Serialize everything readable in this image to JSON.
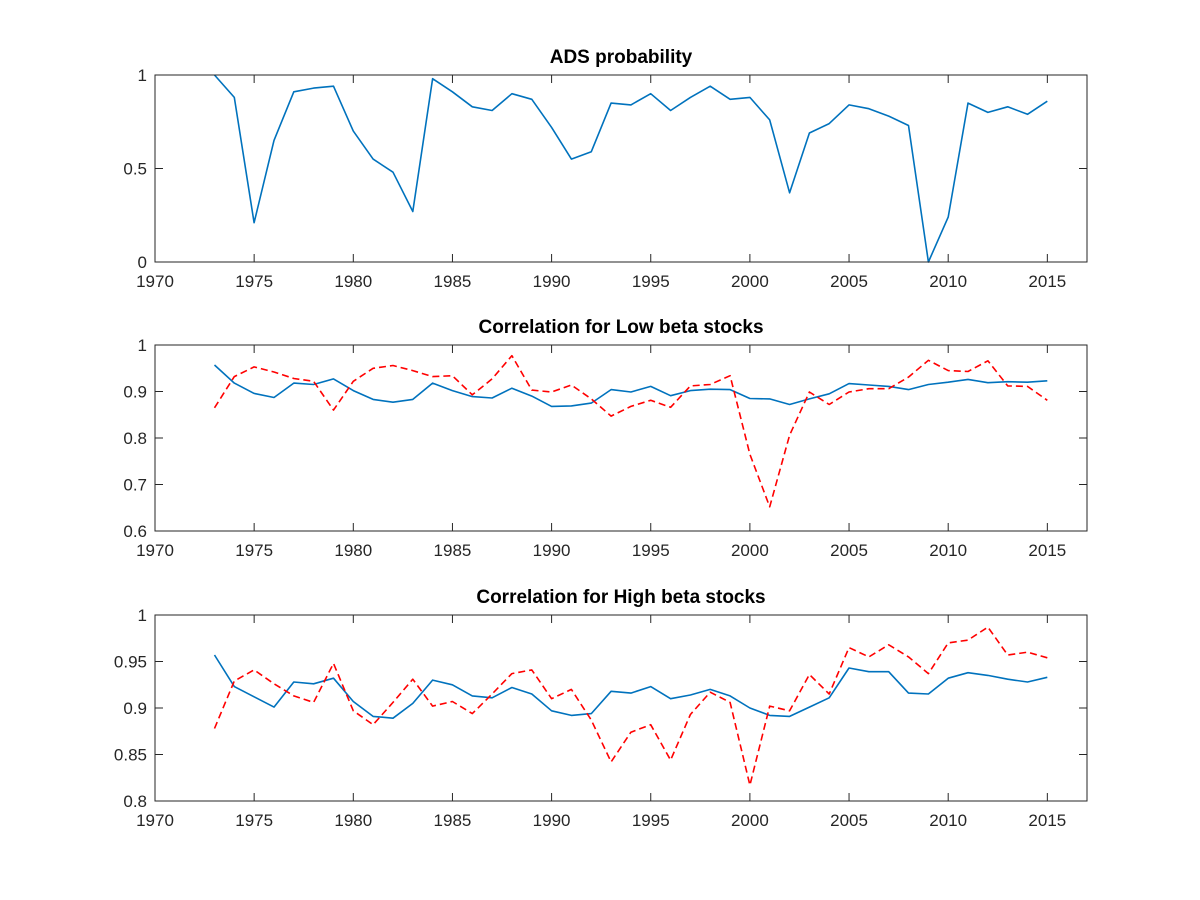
{
  "chart_data": [
    {
      "type": "line",
      "title": "ADS probability",
      "xlabel": "",
      "ylabel": "",
      "xlim": [
        1970,
        2017
      ],
      "ylim": [
        0,
        1
      ],
      "xticks": [
        1970,
        1975,
        1980,
        1985,
        1990,
        1995,
        2000,
        2005,
        2010,
        2015
      ],
      "xtick_labels": [
        "1970",
        "1975",
        "1980",
        "1985",
        "1990",
        "1995",
        "2000",
        "2005",
        "2010",
        "2015"
      ],
      "yticks": [
        0,
        0.5,
        1
      ],
      "ytick_labels": [
        "0",
        "0.5",
        "1"
      ],
      "grid": false,
      "x": [
        1973,
        1974,
        1975,
        1976,
        1977,
        1978,
        1979,
        1980,
        1981,
        1982,
        1983,
        1984,
        1985,
        1986,
        1987,
        1988,
        1989,
        1990,
        1991,
        1992,
        1993,
        1994,
        1995,
        1996,
        1997,
        1998,
        1999,
        2000,
        2001,
        2002,
        2003,
        2004,
        2005,
        2006,
        2007,
        2008,
        2009,
        2010,
        2011,
        2012,
        2013,
        2014,
        2015
      ],
      "series": [
        {
          "color": "#0072BD",
          "style": "solid",
          "values": [
            1.0,
            0.88,
            0.21,
            0.65,
            0.91,
            0.93,
            0.94,
            0.7,
            0.55,
            0.48,
            0.27,
            0.98,
            0.91,
            0.83,
            0.81,
            0.9,
            0.87,
            0.72,
            0.55,
            0.59,
            0.85,
            0.84,
            0.9,
            0.81,
            0.88,
            0.94,
            0.87,
            0.88,
            0.76,
            0.37,
            0.69,
            0.74,
            0.84,
            0.82,
            0.78,
            0.73,
            0.0,
            0.24,
            0.85,
            0.8,
            0.83,
            0.79,
            0.86
          ]
        }
      ]
    },
    {
      "type": "line",
      "title": "Correlation for Low beta stocks",
      "xlabel": "",
      "ylabel": "",
      "xlim": [
        1970,
        2017
      ],
      "ylim": [
        0.6,
        1
      ],
      "xticks": [
        1970,
        1975,
        1980,
        1985,
        1990,
        1995,
        2000,
        2005,
        2010,
        2015
      ],
      "xtick_labels": [
        "1970",
        "1975",
        "1980",
        "1985",
        "1990",
        "1995",
        "2000",
        "2005",
        "2010",
        "2015"
      ],
      "yticks": [
        0.6,
        0.7,
        0.8,
        0.9,
        1
      ],
      "ytick_labels": [
        "0.6",
        "0.7",
        "0.8",
        "0.9",
        "1"
      ],
      "grid": false,
      "x": [
        1973,
        1974,
        1975,
        1976,
        1977,
        1978,
        1979,
        1980,
        1981,
        1982,
        1983,
        1984,
        1985,
        1986,
        1987,
        1988,
        1989,
        1990,
        1991,
        1992,
        1993,
        1994,
        1995,
        1996,
        1997,
        1998,
        1999,
        2000,
        2001,
        2002,
        2003,
        2004,
        2005,
        2006,
        2007,
        2008,
        2009,
        2010,
        2011,
        2012,
        2013,
        2014,
        2015
      ],
      "series": [
        {
          "color": "#0072BD",
          "style": "solid",
          "values": [
            0.957,
            0.918,
            0.896,
            0.887,
            0.918,
            0.915,
            0.927,
            0.902,
            0.883,
            0.877,
            0.883,
            0.918,
            0.902,
            0.889,
            0.886,
            0.907,
            0.89,
            0.868,
            0.869,
            0.875,
            0.904,
            0.899,
            0.911,
            0.891,
            0.902,
            0.905,
            0.904,
            0.885,
            0.884,
            0.872,
            0.884,
            0.895,
            0.917,
            0.914,
            0.911,
            0.904,
            0.915,
            0.92,
            0.926,
            0.919,
            0.921,
            0.92,
            0.923
          ]
        },
        {
          "color": "#FF0000",
          "style": "dashed",
          "values": [
            0.865,
            0.932,
            0.953,
            0.942,
            0.928,
            0.922,
            0.86,
            0.922,
            0.95,
            0.956,
            0.945,
            0.932,
            0.934,
            0.893,
            0.927,
            0.977,
            0.903,
            0.899,
            0.914,
            0.884,
            0.847,
            0.868,
            0.881,
            0.866,
            0.912,
            0.915,
            0.934,
            0.765,
            0.652,
            0.806,
            0.899,
            0.872,
            0.899,
            0.906,
            0.906,
            0.931,
            0.967,
            0.945,
            0.943,
            0.966,
            0.912,
            0.911,
            0.881
          ]
        }
      ]
    },
    {
      "type": "line",
      "title": "Correlation for High beta stocks",
      "xlabel": "",
      "ylabel": "",
      "xlim": [
        1970,
        2017
      ],
      "ylim": [
        0.8,
        1
      ],
      "xticks": [
        1970,
        1975,
        1980,
        1985,
        1990,
        1995,
        2000,
        2005,
        2010,
        2015
      ],
      "xtick_labels": [
        "1970",
        "1975",
        "1980",
        "1985",
        "1990",
        "1995",
        "2000",
        "2005",
        "2010",
        "2015"
      ],
      "yticks": [
        0.8,
        0.85,
        0.9,
        0.95,
        1
      ],
      "ytick_labels": [
        "0.8",
        "0.85",
        "0.9",
        "0.95",
        "1"
      ],
      "grid": false,
      "x": [
        1973,
        1974,
        1975,
        1976,
        1977,
        1978,
        1979,
        1980,
        1981,
        1982,
        1983,
        1984,
        1985,
        1986,
        1987,
        1988,
        1989,
        1990,
        1991,
        1992,
        1993,
        1994,
        1995,
        1996,
        1997,
        1998,
        1999,
        2000,
        2001,
        2002,
        2003,
        2004,
        2005,
        2006,
        2007,
        2008,
        2009,
        2010,
        2011,
        2012,
        2013,
        2014,
        2015
      ],
      "series": [
        {
          "color": "#0072BD",
          "style": "solid",
          "values": [
            0.957,
            0.923,
            0.912,
            0.901,
            0.928,
            0.926,
            0.932,
            0.907,
            0.891,
            0.889,
            0.905,
            0.93,
            0.925,
            0.913,
            0.911,
            0.922,
            0.915,
            0.897,
            0.892,
            0.894,
            0.918,
            0.916,
            0.923,
            0.91,
            0.914,
            0.92,
            0.913,
            0.9,
            0.892,
            0.891,
            0.901,
            0.911,
            0.943,
            0.939,
            0.939,
            0.916,
            0.915,
            0.932,
            0.938,
            0.935,
            0.931,
            0.928,
            0.933
          ]
        },
        {
          "color": "#FF0000",
          "style": "dashed",
          "values": [
            0.878,
            0.929,
            0.941,
            0.926,
            0.913,
            0.906,
            0.948,
            0.897,
            0.882,
            0.906,
            0.931,
            0.902,
            0.907,
            0.894,
            0.915,
            0.937,
            0.941,
            0.91,
            0.92,
            0.887,
            0.842,
            0.874,
            0.882,
            0.844,
            0.893,
            0.917,
            0.906,
            0.817,
            0.902,
            0.897,
            0.936,
            0.915,
            0.965,
            0.955,
            0.968,
            0.955,
            0.937,
            0.97,
            0.973,
            0.987,
            0.957,
            0.96,
            0.954
          ]
        }
      ]
    }
  ]
}
